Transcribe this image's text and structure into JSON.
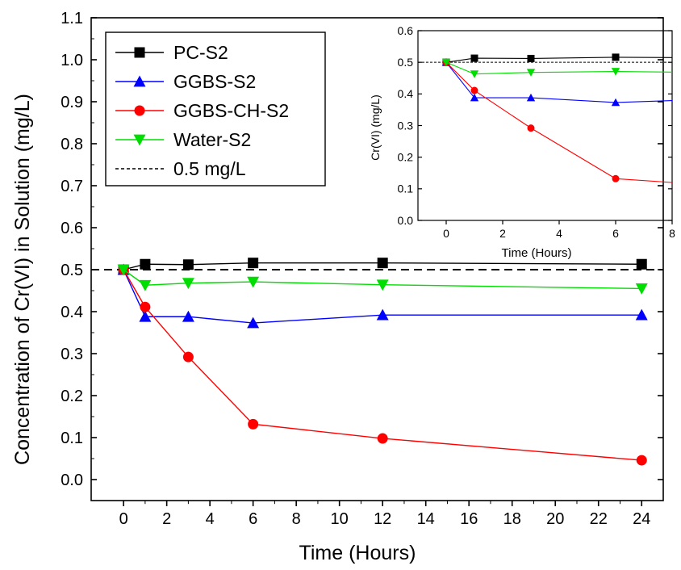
{
  "chart_data": [
    {
      "id": "main",
      "type": "line",
      "xlabel": "Time (Hours)",
      "ylabel": "Concentration of Cr(VI) in Solution (mg/L)",
      "xlim": [
        -1.5,
        25
      ],
      "ylim": [
        -0.05,
        1.1
      ],
      "xticks": [
        "0",
        "2",
        "4",
        "6",
        "8",
        "10",
        "12",
        "14",
        "16",
        "18",
        "20",
        "22",
        "24"
      ],
      "yticks": [
        "0.0",
        "0.1",
        "0.2",
        "0.3",
        "0.4",
        "0.5",
        "0.6",
        "0.7",
        "0.8",
        "0.9",
        "1.0",
        "1.1"
      ],
      "legend_position": "top-left",
      "series": [
        {
          "name": "PC-S2",
          "color": "#000000",
          "marker": "square",
          "x": [
            0,
            1,
            3,
            6,
            12,
            24
          ],
          "y": [
            0.5,
            0.513,
            0.512,
            0.516,
            0.516,
            0.513
          ]
        },
        {
          "name": "GGBS-S2",
          "color": "#0000ff",
          "marker": "triangle-up",
          "x": [
            0,
            1,
            3,
            6,
            12,
            24
          ],
          "y": [
            0.5,
            0.388,
            0.388,
            0.373,
            0.392,
            0.392
          ]
        },
        {
          "name": "GGBS-CH-S2",
          "color": "#ff0000",
          "marker": "circle",
          "x": [
            0,
            1,
            3,
            6,
            12,
            24
          ],
          "y": [
            0.5,
            0.411,
            0.292,
            0.132,
            0.098,
            0.046
          ]
        },
        {
          "name": "Water-S2",
          "color": "#00dd00",
          "marker": "triangle-down",
          "x": [
            0,
            1,
            3,
            6,
            12,
            24
          ],
          "y": [
            0.5,
            0.463,
            0.468,
            0.471,
            0.464,
            0.455
          ]
        }
      ],
      "reference_line": {
        "name": "0.5 mg/L",
        "y": 0.5,
        "style": "dashed",
        "color": "#000000"
      }
    },
    {
      "id": "inset",
      "type": "line",
      "xlabel": "Time (Hours)",
      "ylabel": "Cr(VI) (mg/L)",
      "xlim": [
        -1,
        8
      ],
      "ylim": [
        0.0,
        0.6
      ],
      "xticks": [
        "0",
        "2",
        "4",
        "6",
        "8"
      ],
      "yticks": [
        "0.0",
        "0.1",
        "0.2",
        "0.3",
        "0.4",
        "0.5",
        "0.6"
      ],
      "series": [
        {
          "name": "PC-S2",
          "color": "#000000",
          "marker": "square",
          "x": [
            0,
            1,
            3,
            6,
            8
          ],
          "y": [
            0.5,
            0.513,
            0.512,
            0.516,
            0.515
          ]
        },
        {
          "name": "GGBS-S2",
          "color": "#0000ff",
          "marker": "triangle-up",
          "x": [
            0,
            1,
            3,
            6,
            8
          ],
          "y": [
            0.5,
            0.388,
            0.388,
            0.373,
            0.379
          ]
        },
        {
          "name": "GGBS-CH-S2",
          "color": "#ff0000",
          "marker": "circle",
          "x": [
            0,
            1,
            3,
            6,
            8
          ],
          "y": [
            0.5,
            0.411,
            0.292,
            0.132,
            0.12
          ]
        },
        {
          "name": "Water-S2",
          "color": "#00dd00",
          "marker": "triangle-down",
          "x": [
            0,
            1,
            3,
            6,
            8
          ],
          "y": [
            0.5,
            0.463,
            0.468,
            0.471,
            0.469
          ]
        }
      ],
      "reference_line": {
        "y": 0.5,
        "style": "dashed",
        "color": "#000000"
      }
    }
  ]
}
